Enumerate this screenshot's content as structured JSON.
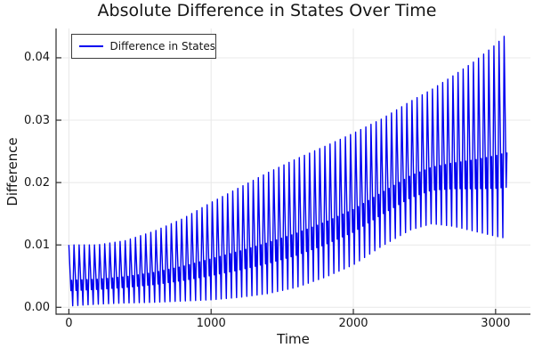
{
  "chart_data": {
    "type": "line",
    "title": "Absolute Difference in States Over Time",
    "xlabel": "Time",
    "ylabel": "Difference",
    "legend": {
      "position": "top-left",
      "entries": [
        {
          "label": "Difference in States",
          "color": "#0000f0"
        }
      ]
    },
    "grid": true,
    "grid_color": "#e8e8e8",
    "spine_color": "#2b2b2b",
    "background": "#ffffff",
    "xlim": [
      -90,
      3245
    ],
    "ylim": [
      -0.0011,
      0.0447
    ],
    "xticks": [
      0,
      1000,
      2000,
      3000
    ],
    "xtick_labels": [
      "0",
      "1000",
      "2000",
      "3000"
    ],
    "yticks": [
      0.0,
      0.01,
      0.02,
      0.03,
      0.04
    ],
    "ytick_labels": [
      "0.00",
      "0.01",
      "0.02",
      "0.03",
      "0.04"
    ],
    "series": [
      {
        "name": "Difference in States",
        "color": "#0000f0",
        "line_width": 1.4,
        "description": "Fast sawtooth-like oscillation between slowly varying envelopes; each cycle: peak, drop to mid shoulder, small bump, deep trough.",
        "oscillation_period": 36,
        "t_start": 0,
        "t_end": 3082,
        "mid_bump_fractions": [
          0.25,
          0.42
        ],
        "envelope_t": [
          0,
          200,
          400,
          600,
          800,
          1000,
          1200,
          1400,
          1600,
          1800,
          2000,
          2200,
          2400,
          2550,
          2700,
          2850,
          3000,
          3085
        ],
        "envelope_upper": [
          0.01,
          0.01,
          0.0107,
          0.0122,
          0.0142,
          0.0168,
          0.0192,
          0.0216,
          0.0238,
          0.0258,
          0.0279,
          0.0302,
          0.033,
          0.0349,
          0.0371,
          0.0394,
          0.0421,
          0.044
        ],
        "envelope_lower": [
          0.0002,
          0.0005,
          0.0007,
          0.0008,
          0.001,
          0.0012,
          0.0016,
          0.0022,
          0.0032,
          0.0048,
          0.0068,
          0.0098,
          0.0124,
          0.0134,
          0.013,
          0.0122,
          0.0114,
          0.011
        ]
      }
    ]
  }
}
